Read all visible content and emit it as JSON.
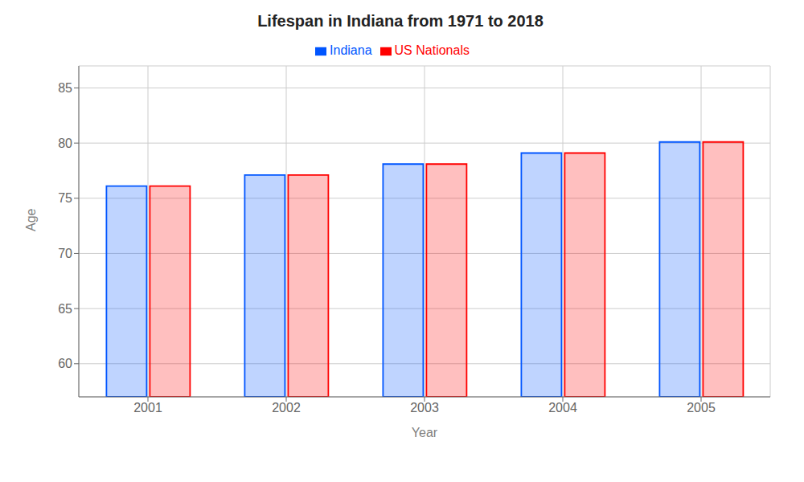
{
  "chart_data": {
    "type": "bar",
    "title": "Lifespan in Indiana from 1971 to 2018",
    "x_label": "Year",
    "y_label": "Age",
    "categories": [
      "2001",
      "2002",
      "2003",
      "2004",
      "2005"
    ],
    "series": [
      {
        "name": "Indiana",
        "color": "#0055ff",
        "values": [
          76.1,
          77.1,
          78.1,
          79.1,
          80.1
        ]
      },
      {
        "name": "US Nationals",
        "color": "#ff0000",
        "values": [
          76.1,
          77.1,
          78.1,
          79.1,
          80.1
        ]
      }
    ],
    "ylim": [
      57,
      87
    ],
    "yticks": [
      60,
      65,
      70,
      75,
      80,
      85
    ],
    "grid": true,
    "legend": "top"
  }
}
